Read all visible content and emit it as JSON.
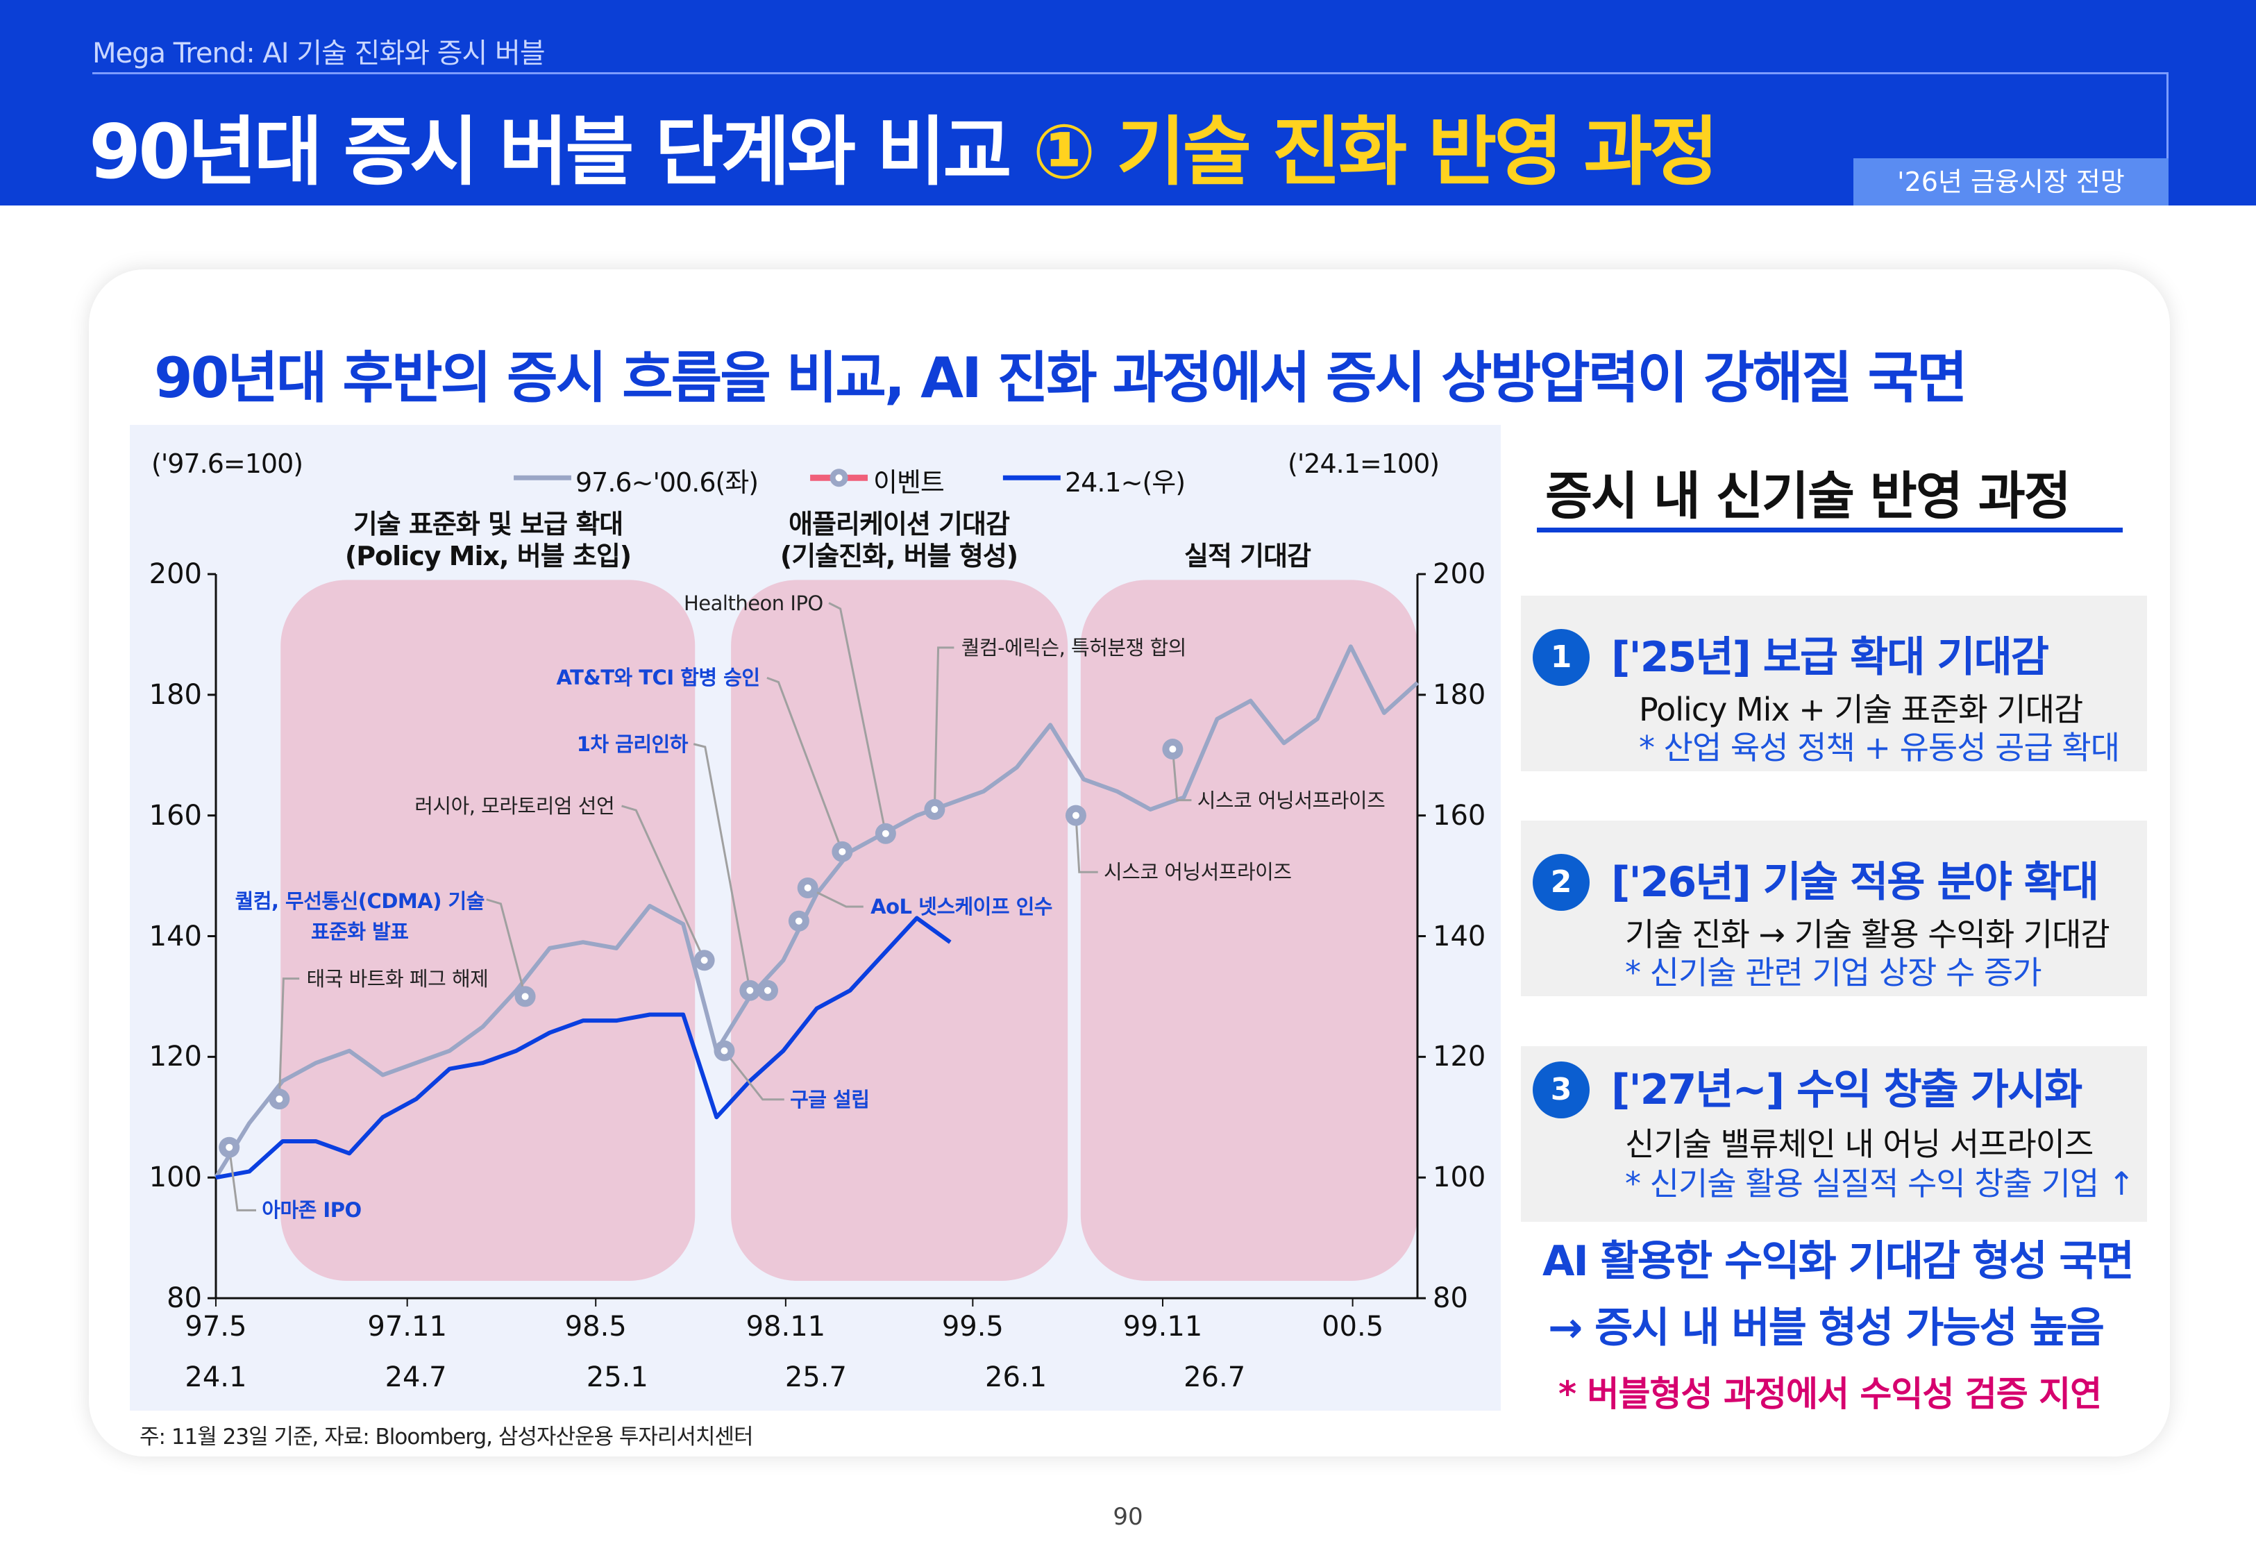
{
  "header": {
    "subtitle": "Mega Trend: AI 기술 진화와 증시 버블",
    "title_main": "90년대 증시 버블 단계와 비교 ",
    "title_highlight": "① 기술 진화 반영 과정",
    "tag": "'26년 금융시장 전망"
  },
  "headline": "90년대 후반의 증시 흐름을 비교, AI 진화 과정에서 증시 상방압력이 강해질 국면",
  "chart_data": {
    "type": "line",
    "left_axis_note": "('97.6=100)",
    "right_axis_note": "('24.1=100)",
    "legend": {
      "series_1": "97.6~'00.6(좌)",
      "events": "이벤트",
      "series_2": "24.1~(우)",
      "position": "top"
    },
    "phases": [
      {
        "line1": "기술 표준화 및 보급 확대",
        "line2": "(Policy Mix, 버블 초입)",
        "color": "#ecc8d8"
      },
      {
        "line1": "애플리케이션 기대감",
        "line2": "(기술진화, 버블 형성)",
        "color": "#ecc8d8"
      },
      {
        "line1": "",
        "line2": "실적 기대감",
        "color": "#ecc8d8"
      }
    ],
    "y_left": {
      "range": [
        80,
        200
      ],
      "ticks": [
        "200",
        "180",
        "160",
        "140",
        "120",
        "100",
        "80"
      ]
    },
    "y_right": {
      "range": [
        80,
        200
      ],
      "ticks": [
        "200",
        "180",
        "160",
        "140",
        "120",
        "100",
        "80"
      ]
    },
    "x_ticks_top": [
      "97.5",
      "97.11",
      "98.5",
      "98.11",
      "99.5",
      "99.11",
      "00.5"
    ],
    "x_ticks_bottom": [
      "24.1",
      "24.7",
      "25.1",
      "25.7",
      "26.1",
      "26.7"
    ],
    "grid": false,
    "series": [
      {
        "name": "97.6~'00.6(좌)",
        "axis": "left",
        "color": "#9aa6c6",
        "start": "97.6",
        "end": "00.6",
        "values": [
          100,
          109,
          116,
          119,
          121,
          117,
          119,
          121,
          125,
          131,
          138,
          139,
          138,
          145,
          142,
          121,
          130,
          136,
          147,
          154,
          157,
          160,
          162,
          164,
          168,
          175,
          166,
          164,
          161,
          163,
          176,
          179,
          172,
          176,
          188,
          177,
          182
        ]
      },
      {
        "name": "24.1~(우)",
        "axis": "right",
        "color": "#0a3fe0",
        "start": "24.1",
        "end": "25.11",
        "values": [
          100,
          101,
          106,
          106,
          104,
          110,
          113,
          118,
          119,
          121,
          124,
          126,
          126,
          127,
          127,
          110,
          116,
          121,
          128,
          131,
          137,
          143,
          139
        ]
      }
    ],
    "events": [
      {
        "label": [
          "아마존 IPO"
        ],
        "date": "97.06.13",
        "value": 105,
        "color": "#1446d8"
      },
      {
        "label": [
          "태국 바트화 페그 해제"
        ],
        "date": "97.07.28",
        "value": 113,
        "color": "#222222"
      },
      {
        "label": [
          "퀄컴, 무선통신(CDMA) 기술",
          "표준화 발표"
        ],
        "date": "98.03.09",
        "value": 130,
        "color": "#1446d8"
      },
      {
        "label": [
          "러시아, 모라토리엄 선언"
        ],
        "date": "98.08.20",
        "value": 136,
        "color": "#222222"
      },
      {
        "label": [
          "구글 설립"
        ],
        "date": "98.09.08",
        "value": 121,
        "color": "#1446d8"
      },
      {
        "label": [
          "1차 금리인하"
        ],
        "date": "98.10.01",
        "value": 131,
        "color": "#1446d8"
      },
      {
        "label": [],
        "date": "98.10.17",
        "value": 131,
        "color": "#222222"
      },
      {
        "label": [],
        "date": "98.11.15",
        "value": 142.5,
        "color": "#222222"
      },
      {
        "label": [
          "AoL 넷스케이프 인수"
        ],
        "date": "98.11.23",
        "value": 148,
        "color": "#1446d8"
      },
      {
        "label": [
          "AT&T와 TCI 합병 승인"
        ],
        "date": "98.12.24",
        "value": 154,
        "color": "#1446d8"
      },
      {
        "label": [
          "Healtheon IPO"
        ],
        "date": "99.02.03",
        "value": 157,
        "color": "#222222"
      },
      {
        "label": [
          "퀄컴-에릭슨, 특허분쟁 합의"
        ],
        "date": "99.03.17",
        "value": 161,
        "color": "#222222"
      },
      {
        "label": [
          "시스코 어닝서프라이즈"
        ],
        "date": "99.07.24",
        "value": 160,
        "color": "#222222"
      },
      {
        "label": [
          "시스코 어닝서프라이즈"
        ],
        "date": "99.10.21",
        "value": 171,
        "color": "#222222"
      }
    ]
  },
  "footnote": "주: 11월 23일 기준, 자료: Bloomberg, 삼성자산운용 투자리서치센터",
  "side_panel": {
    "title": "증시 내 신기술 반영 과정",
    "steps": [
      {
        "num": "1",
        "title": "['25년] 보급 확대 기대감",
        "line1": "Policy Mix + 기술 표준화 기대감",
        "line2": "* 산업 육성 정책 + 유동성 공급 확대"
      },
      {
        "num": "2",
        "title": "['26년] 기술 적용 분야 확대",
        "line1": "기술 진화 → 기술 활용 수익화 기대감",
        "line2": "* 신기술 관련 기업 상장 수 증가"
      },
      {
        "num": "3",
        "title": "['27년~] 수익 창출 가시화",
        "line1": "신기술 밸류체인 내 어닝 서프라이즈",
        "line2": "* 신기술 활용 실질적 수익 창출 기업 ↑"
      }
    ],
    "conclusion_1": "AI 활용한 수익화 기대감 형성 국면",
    "conclusion_2": "→ 증시 내 버블 형성 가능성 높음",
    "warning": "* 버블형성 과정에서 수익성 검증 지연"
  },
  "page_number": "90"
}
